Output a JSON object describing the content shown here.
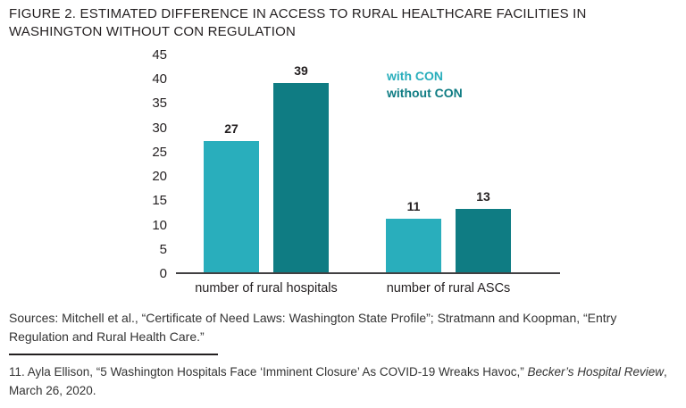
{
  "figure": {
    "title": "FIGURE 2. ESTIMATED DIFFERENCE IN ACCESS TO RURAL HEALTHCARE FACILITIES IN WASHINGTON WITHOUT CON REGULATION"
  },
  "sources": "Sources: Mitchell et al., “Certificate of Need Laws: Washington State Profile”; Stratmann and Koopman, “Entry Regulation and Rural Health Care.”",
  "footnote": {
    "prefix": "11. Ayla Ellison, “5 Washington Hospitals Face ‘Imminent Closure’ As COVID-19 Wreaks Havoc,” ",
    "italic": "Becker’s Hospital Review",
    "suffix": ", March 26, 2020."
  },
  "colors": {
    "with_con": "#29AEBC",
    "without_con": "#0F7C83",
    "text": "#231F20",
    "axis_line": "#414042"
  },
  "chart_data": {
    "type": "bar",
    "title": "FIGURE 2. ESTIMATED DIFFERENCE IN ACCESS TO RURAL HEALTHCARE FACILITIES IN WASHINGTON WITHOUT CON REGULATION",
    "categories": [
      "number of rural hospitals",
      "number of rural ASCs"
    ],
    "series": [
      {
        "name": "with CON",
        "values": [
          27,
          11
        ],
        "color": "#29AEBC"
      },
      {
        "name": "without CON",
        "values": [
          39,
          13
        ],
        "color": "#0F7C83"
      }
    ],
    "xlabel": "",
    "ylabel": "",
    "ylim": [
      0,
      45
    ],
    "yticks": [
      0,
      5,
      10,
      15,
      20,
      25,
      30,
      35,
      40,
      45
    ],
    "grid": false,
    "legend_position": "top-right",
    "bar_value_labels": true
  }
}
